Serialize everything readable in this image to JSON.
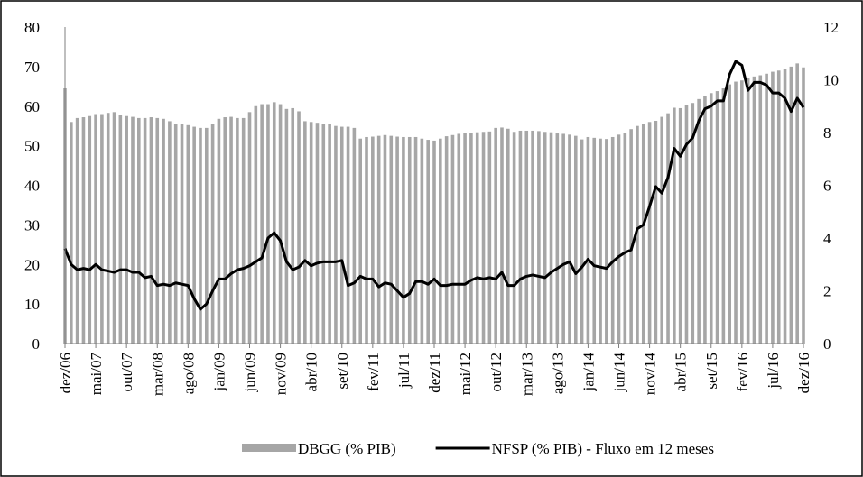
{
  "chart_data": {
    "type": "bar",
    "categories": [
      "dez/06",
      null,
      null,
      null,
      null,
      "mai/07",
      null,
      null,
      null,
      null,
      "out/07",
      null,
      null,
      null,
      null,
      "mar/08",
      null,
      null,
      null,
      null,
      "ago/08",
      null,
      null,
      null,
      null,
      "jan/09",
      null,
      null,
      null,
      null,
      "jun/09",
      null,
      null,
      null,
      null,
      "nov/09",
      null,
      null,
      null,
      null,
      "abr/10",
      null,
      null,
      null,
      null,
      "set/10",
      null,
      null,
      null,
      null,
      "fev/11",
      null,
      null,
      null,
      null,
      "jul/11",
      null,
      null,
      null,
      null,
      "dez/11",
      null,
      null,
      null,
      null,
      "mai/12",
      null,
      null,
      null,
      null,
      "out/12",
      null,
      null,
      null,
      null,
      "mar/13",
      null,
      null,
      null,
      null,
      "ago/13",
      null,
      null,
      null,
      null,
      "jan/14",
      null,
      null,
      null,
      null,
      "jun/14",
      null,
      null,
      null,
      null,
      "nov/14",
      null,
      null,
      null,
      null,
      "abr/15",
      null,
      null,
      null,
      null,
      "set/15",
      null,
      null,
      null,
      null,
      "fev/16",
      null,
      null,
      null,
      null,
      "jul/16",
      null,
      null,
      null,
      null,
      "dez/16"
    ],
    "series": [
      {
        "name": "DBGG (% PIB)",
        "type": "bar",
        "color": "#a6a6a6",
        "axis": "y",
        "values": [
          64.5,
          56,
          57,
          57.2,
          57.5,
          58,
          58,
          58.3,
          58.5,
          57.8,
          57.5,
          57.3,
          57,
          57,
          57.2,
          57,
          56.8,
          56.2,
          55.6,
          55.4,
          55.2,
          54.8,
          54.5,
          54.5,
          55.5,
          56.8,
          57.2,
          57.3,
          57,
          57,
          58.5,
          60,
          60.5,
          60.5,
          61,
          60.5,
          59.3,
          59.5,
          58.7,
          56.2,
          56,
          55.8,
          55.6,
          55.4,
          55,
          54.8,
          54.8,
          54.5,
          51.8,
          52.2,
          52.3,
          52.5,
          52.7,
          52.5,
          52.3,
          52.2,
          52.2,
          52.2,
          51.8,
          51.5,
          51.3,
          51.8,
          52.4,
          52.7,
          53,
          53.2,
          53.3,
          53.4,
          53.5,
          53.6,
          54.5,
          54.6,
          54.3,
          53.5,
          53.8,
          53.8,
          53.8,
          53.7,
          53.5,
          53.4,
          53.1,
          53,
          52.8,
          52.5,
          51.6,
          52.2,
          52,
          51.8,
          51.7,
          52.2,
          52.8,
          53.3,
          54.2,
          55,
          55.5,
          56,
          56.3,
          57.3,
          58.2,
          59.6,
          59.5,
          60.2,
          60.8,
          61.8,
          62.5,
          63.3,
          63.8,
          64.5,
          65.5,
          66.2,
          66.5,
          67,
          67.5,
          67.8,
          68.2,
          68.7,
          69,
          69.5,
          70,
          70.8,
          69.8
        ]
      },
      {
        "name": "NFSP (% PIB) - Fluxo em 12 meses",
        "type": "line",
        "color": "#000000",
        "axis": "y2",
        "values": [
          3.6,
          3.0,
          2.8,
          2.85,
          2.8,
          3.0,
          2.8,
          2.75,
          2.7,
          2.8,
          2.8,
          2.7,
          2.7,
          2.5,
          2.55,
          2.2,
          2.25,
          2.2,
          2.3,
          2.25,
          2.2,
          1.7,
          1.3,
          1.5,
          2.0,
          2.45,
          2.45,
          2.65,
          2.8,
          2.85,
          2.95,
          3.1,
          3.25,
          4.0,
          4.2,
          3.9,
          3.1,
          2.8,
          2.9,
          3.15,
          2.95,
          3.05,
          3.1,
          3.1,
          3.1,
          3.15,
          2.2,
          2.3,
          2.55,
          2.45,
          2.45,
          2.15,
          2.3,
          2.25,
          2.0,
          1.75,
          1.9,
          2.35,
          2.35,
          2.25,
          2.45,
          2.2,
          2.2,
          2.25,
          2.25,
          2.25,
          2.4,
          2.5,
          2.45,
          2.5,
          2.45,
          2.7,
          2.2,
          2.2,
          2.45,
          2.55,
          2.6,
          2.55,
          2.5,
          2.7,
          2.85,
          3.0,
          3.1,
          2.65,
          2.9,
          3.2,
          2.95,
          2.9,
          2.85,
          3.1,
          3.3,
          3.45,
          3.55,
          4.35,
          4.5,
          5.2,
          5.95,
          5.7,
          6.3,
          7.4,
          7.1,
          7.55,
          7.8,
          8.45,
          8.9,
          9.0,
          9.2,
          9.2,
          10.2,
          10.7,
          10.55,
          9.6,
          9.9,
          9.9,
          9.8,
          9.5,
          9.5,
          9.3,
          8.8,
          9.3,
          8.95
        ]
      }
    ],
    "ylim": [
      0,
      80
    ],
    "yticks": [
      0,
      10,
      20,
      30,
      40,
      50,
      60,
      70,
      80
    ],
    "y2lim": [
      0,
      12
    ],
    "y2ticks": [
      0,
      2,
      4,
      6,
      8,
      10,
      12
    ],
    "grid": false,
    "legend": "bottom"
  }
}
